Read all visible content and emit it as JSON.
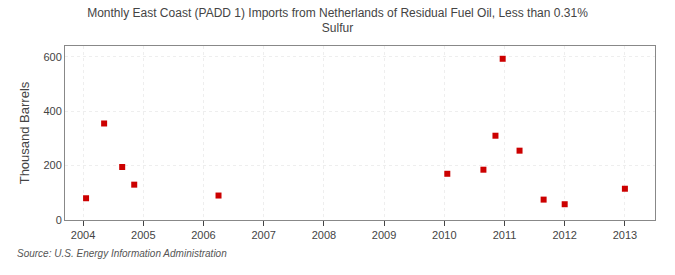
{
  "chart_data": {
    "type": "scatter",
    "title": "Monthly East Coast (PADD 1) Imports from Netherlands of Residual Fuel Oil, Less than 0.31%\nSulfur",
    "ylabel": "Thousand Barrels",
    "annotations": [
      "Source: U.S. Energy Information Administration"
    ],
    "x": [
      2004.05,
      2004.35,
      2004.65,
      2004.85,
      2006.25,
      2010.05,
      2010.65,
      2010.85,
      2010.97,
      2011.25,
      2011.65,
      2012.0,
      2013.0
    ],
    "values": [
      80,
      355,
      195,
      130,
      90,
      170,
      185,
      310,
      593,
      255,
      75,
      58,
      115
    ],
    "color": "#cc0000",
    "marker": "square",
    "xlim": [
      2003.7,
      2013.5
    ],
    "xticks": [
      2004,
      2005,
      2006,
      2007,
      2008,
      2009,
      2010,
      2011,
      2012,
      2013
    ],
    "ylim": [
      0,
      640
    ],
    "yticks": [
      0,
      200,
      400,
      600
    ],
    "grid": true
  }
}
